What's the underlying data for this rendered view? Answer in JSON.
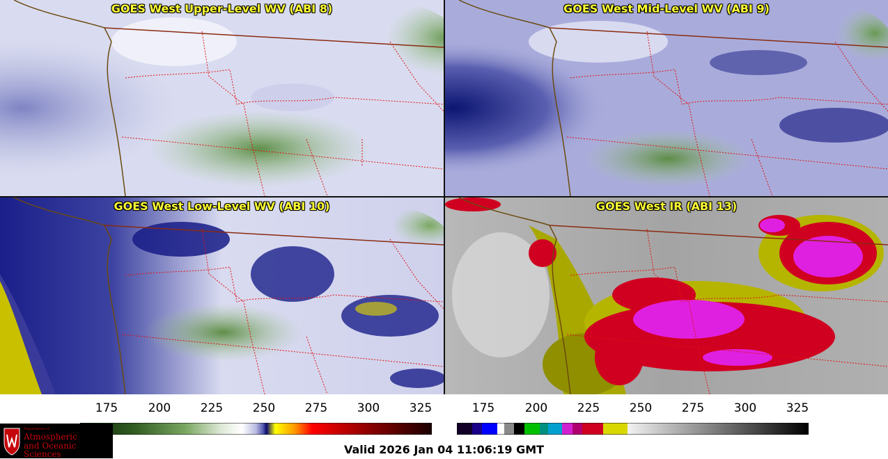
{
  "panels": [
    {
      "title": "GOES West Upper-Level WV (ABI 8)"
    },
    {
      "title": "GOES West Mid-Level WV (ABI 9)"
    },
    {
      "title": "GOES West Low-Level WV (ABI 10)"
    },
    {
      "title": "GOES West IR (ABI 13)"
    }
  ],
  "wv_colorbar": {
    "ticks": [
      "175",
      "200",
      "225",
      "250",
      "275",
      "300",
      "325"
    ],
    "colors": [
      "#1a3a10",
      "#4c7a3a",
      "#9cc48a",
      "#ffffff",
      "#8c90c8",
      "#0a0a7a",
      "#ffff00",
      "#ff8800",
      "#ff0000",
      "#990000",
      "#200000"
    ]
  },
  "ir_colorbar": {
    "ticks": [
      "175",
      "200",
      "225",
      "250",
      "275",
      "300",
      "325"
    ]
  },
  "logo": {
    "line1": "Department of",
    "line2": "Atmospheric",
    "line3": "and Oceanic Sciences"
  },
  "valid_time": "Valid 2026 Jan 04 11:06:19 GMT"
}
